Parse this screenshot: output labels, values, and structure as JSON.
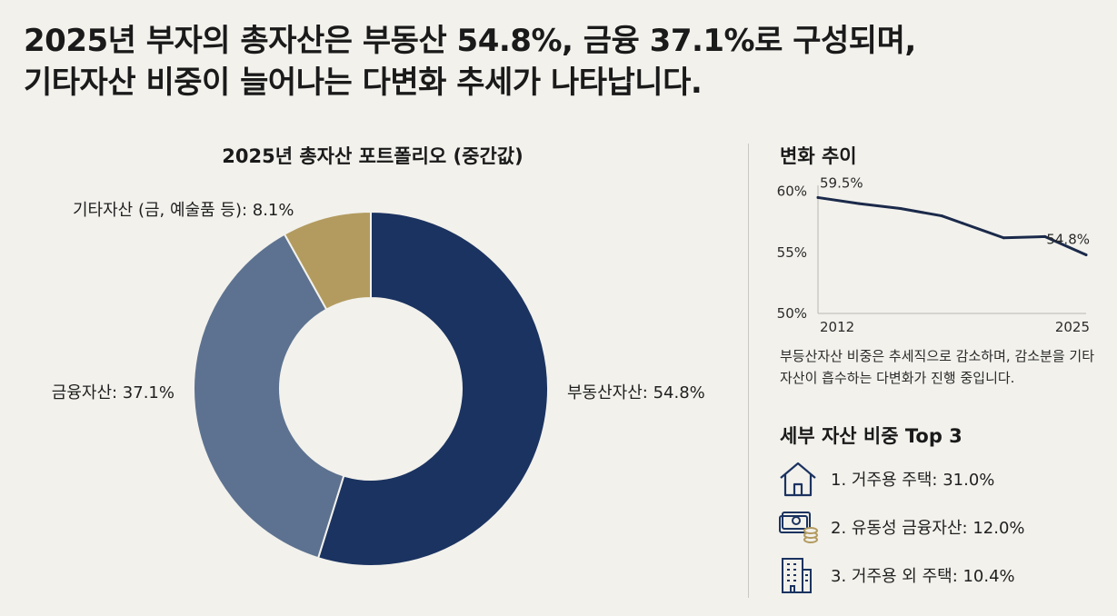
{
  "headline": {
    "line1": "2025년 부자의 총자산은 부동산 54.8%, 금융 37.1%로 구성되며,",
    "line2": "기타자산 비중이 늘어나는 다변화 추세가 나타납니다."
  },
  "colors": {
    "real_estate": "#1b3360",
    "financial": "#5d7290",
    "other": "#b39b5f",
    "line": "#1b2a4a"
  },
  "chart_data": [
    {
      "type": "pie",
      "title": "2025년 총자산 포트폴리오 (중간값)",
      "donut": true,
      "categories": [
        "부동산자산",
        "금융자산",
        "기타자산 (금, 예술품 등)"
      ],
      "values": [
        54.8,
        37.1,
        8.1
      ],
      "labels": [
        "부동산자산: 54.8%",
        "금융자산: 37.1%",
        "기타자산 (금, 예술품 등): 8.1%"
      ]
    },
    {
      "type": "line",
      "title": "변화 추이",
      "x": [
        2012,
        2014,
        2016,
        2018,
        2019,
        2021,
        2023,
        2025
      ],
      "y": [
        59.5,
        59.0,
        58.6,
        58.0,
        57.4,
        56.2,
        56.3,
        54.8
      ],
      "x_tick_labels": [
        "2012",
        "2025"
      ],
      "y_tick_labels": [
        "60%",
        "55%",
        "50%"
      ],
      "y_ticks": [
        60,
        55,
        50
      ],
      "ylim": [
        50,
        60.5
      ],
      "point_labels": [
        {
          "x": 2012,
          "text": "59.5%"
        },
        {
          "x": 2025,
          "text": "54.8%"
        }
      ],
      "grid": false
    }
  ],
  "trend_note": "부등산자산 비중은 추세직으로 감소하며, 감소분을 기타자산이 흡수하는 다변화가 진행 중입니다.",
  "top3": {
    "title": "세부 자산 비중 Top 3",
    "items": [
      {
        "text": "1. 거주용 주택: 31.0%",
        "icon": "house-icon"
      },
      {
        "text": "2. 유동성 금융자산: 12.0%",
        "icon": "cash-coins-icon"
      },
      {
        "text": "3. 거주용 외 주택: 10.4%",
        "icon": "building-icon"
      }
    ]
  }
}
